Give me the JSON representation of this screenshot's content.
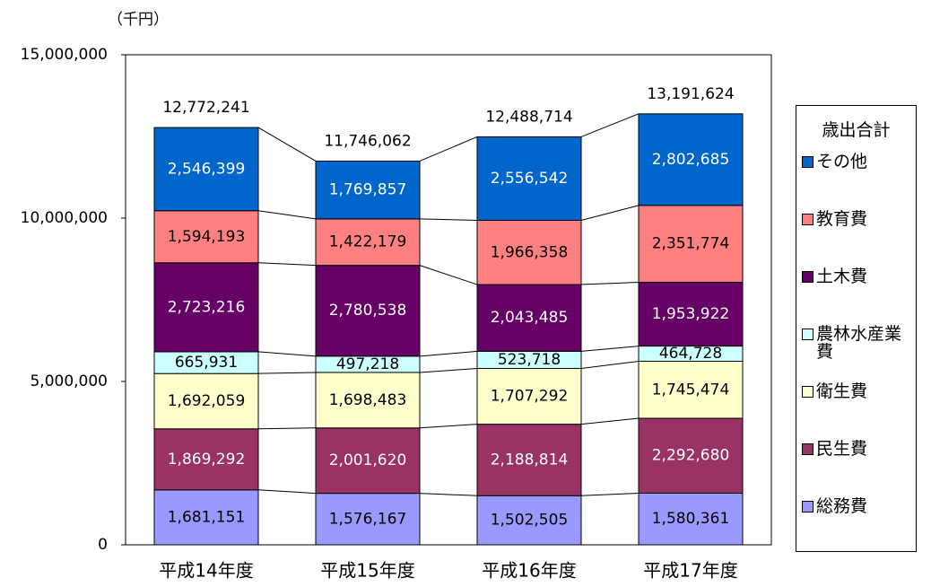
{
  "chart_data": {
    "type": "stacked_bar",
    "y_unit_label": "（千円）",
    "legend_title": "歳出合計",
    "categories": [
      "平成14年度",
      "平成15年度",
      "平成16年度",
      "平成17年度"
    ],
    "series": [
      {
        "name": "総務費",
        "color": "#9999ff",
        "values": [
          1681151,
          1576167,
          1502505,
          1580361
        ],
        "value_labels": [
          "1,681,151",
          "1,576,167",
          "1,502,505",
          "1,580,361"
        ]
      },
      {
        "name": "民生費",
        "color": "#993366",
        "values": [
          1869292,
          2001620,
          2188814,
          2292680
        ],
        "value_labels": [
          "1,869,292",
          "2,001,620",
          "2,188,814",
          "2,292,680"
        ]
      },
      {
        "name": "衛生費",
        "color": "#ffffcc",
        "values": [
          1692059,
          1698483,
          1707292,
          1745474
        ],
        "value_labels": [
          "1,692,059",
          "1,698,483",
          "1,707,292",
          "1,745,474"
        ]
      },
      {
        "name": "農林水産業費",
        "color": "#ccffff",
        "values": [
          665931,
          497218,
          523718,
          464728
        ],
        "value_labels": [
          "665,931",
          "497,218",
          "523,718",
          "464,728"
        ]
      },
      {
        "name": "土木費",
        "color": "#660066",
        "values": [
          2723216,
          2780538,
          2043485,
          1953922
        ],
        "value_labels": [
          "2,723,216",
          "2,780,538",
          "2,043,485",
          "1,953,922"
        ]
      },
      {
        "name": "教育費",
        "color": "#ff8080",
        "values": [
          1594193,
          1422179,
          1966358,
          2351774
        ],
        "value_labels": [
          "1,594,193",
          "1,422,179",
          "1,966,358",
          "2,351,774"
        ]
      },
      {
        "name": "その他",
        "color": "#0066cc",
        "values": [
          2546399,
          1769857,
          2556542,
          2802685
        ],
        "value_labels": [
          "2,546,399",
          "1,769,857",
          "2,556,542",
          "2,802,685"
        ]
      }
    ],
    "totals": [
      12772241,
      11746062,
      12488714,
      13191624
    ],
    "total_labels": [
      "12,772,241",
      "11,746,062",
      "12,488,714",
      "13,191,624"
    ],
    "ylim": [
      0,
      15000000
    ],
    "yticks": [
      0,
      {
        "value": 5000000,
        "label": "5,000,000"
      },
      {
        "value": 10000000,
        "label": "10,000,000"
      },
      {
        "value": 15000000,
        "label": "15,000,000"
      }
    ]
  }
}
